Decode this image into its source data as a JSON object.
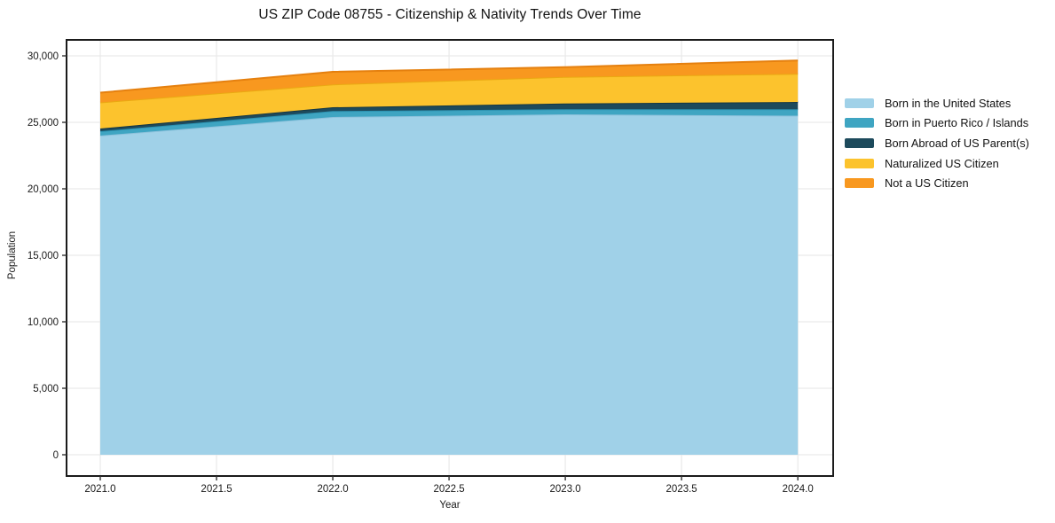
{
  "title": "US ZIP Code 08755 - Citizenship & Nativity Trends Over Time",
  "chart_data": {
    "type": "area",
    "stacked": true,
    "title": "US ZIP Code 08755 - Citizenship & Nativity Trends Over Time",
    "xlabel": "Year",
    "ylabel": "Population",
    "x": [
      2021,
      2022,
      2023,
      2024
    ],
    "series": [
      {
        "name": "Born in the United States",
        "color": "#a0d1e8",
        "edge_color": "#8ec2dc",
        "values": [
          24000,
          25400,
          25600,
          25500
        ]
      },
      {
        "name": "Born in Puerto Rico / Islands",
        "color": "#3fa5c2",
        "edge_color": "#2d93b2",
        "values": [
          330,
          450,
          380,
          480
        ]
      },
      {
        "name": "Born Abroad of US Parent(s)",
        "color": "#1d4a5c",
        "edge_color": "#143644",
        "values": [
          200,
          280,
          440,
          550
        ]
      },
      {
        "name": "Naturalized US Citizen",
        "color": "#fcc32d",
        "edge_color": "#eaa912",
        "values": [
          1970,
          1720,
          2000,
          2120
        ]
      },
      {
        "name": "Not a US Citizen",
        "color": "#f8981f",
        "edge_color": "#e5800f",
        "values": [
          730,
          950,
          730,
          1000
        ]
      }
    ],
    "xlim": [
      2020.855,
      2024.152
    ],
    "ylim": [
      -1600,
      31200
    ],
    "x_ticks": [
      {
        "v": 2021.0,
        "label": "2021.0"
      },
      {
        "v": 2021.5,
        "label": "2021.5"
      },
      {
        "v": 2022.0,
        "label": "2022.0"
      },
      {
        "v": 2022.5,
        "label": "2022.5"
      },
      {
        "v": 2023.0,
        "label": "2023.0"
      },
      {
        "v": 2023.5,
        "label": "2023.5"
      },
      {
        "v": 2024.0,
        "label": "2024.0"
      }
    ],
    "y_ticks": [
      {
        "v": 0,
        "label": "0"
      },
      {
        "v": 5000,
        "label": "5,000"
      },
      {
        "v": 10000,
        "label": "10,000"
      },
      {
        "v": 15000,
        "label": "15,000"
      },
      {
        "v": 20000,
        "label": "20,000"
      },
      {
        "v": 25000,
        "label": "25,000"
      },
      {
        "v": 30000,
        "label": "30,000"
      }
    ],
    "grid": true,
    "grid_color": "#e9e9e9",
    "spine_color": "#1b1b1b",
    "legend_position": "right"
  }
}
